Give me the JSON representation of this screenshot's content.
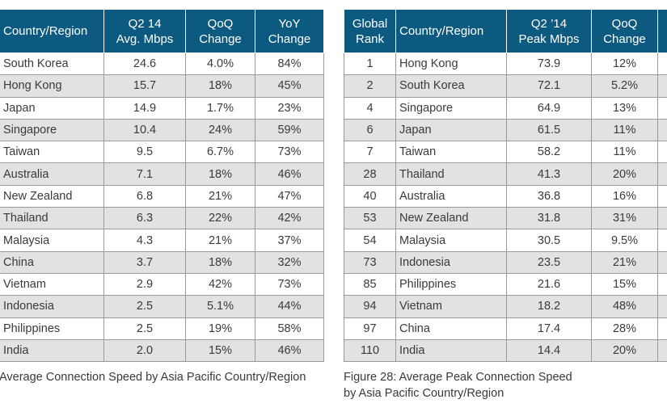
{
  "table1": {
    "headers": [
      "Country/Region",
      "Q2 14\nAvg. Mbps",
      "QoQ\nChange",
      "YoY\nChange"
    ],
    "rows": [
      [
        "South Korea",
        "24.6",
        "4.0%",
        "84%"
      ],
      [
        "Hong Kong",
        "15.7",
        "18%",
        "45%"
      ],
      [
        "Japan",
        "14.9",
        "1.7%",
        "23%"
      ],
      [
        "Singapore",
        "10.4",
        "24%",
        "59%"
      ],
      [
        "Taiwan",
        "9.5",
        "6.7%",
        "73%"
      ],
      [
        "Australia",
        "7.1",
        "18%",
        "46%"
      ],
      [
        "New Zealand",
        "6.8",
        "21%",
        "47%"
      ],
      [
        "Thailand",
        "6.3",
        "22%",
        "42%"
      ],
      [
        "Malaysia",
        "4.3",
        "21%",
        "37%"
      ],
      [
        "China",
        "3.7",
        "18%",
        "32%"
      ],
      [
        "Vietnam",
        "2.9",
        "42%",
        "73%"
      ],
      [
        "Indonesia",
        "2.5",
        "5.1%",
        "44%"
      ],
      [
        "Philippines",
        "2.5",
        "19%",
        "58%"
      ],
      [
        "India",
        "2.0",
        "15%",
        "46%"
      ]
    ],
    "caption": "Average Connection Speed by Asia Pacific Country/Region"
  },
  "table2": {
    "headers": [
      "Global\nRank",
      "Country/Region",
      "Q2 ’14\nPeak Mbps",
      "QoQ\nChange",
      ""
    ],
    "rows": [
      [
        "1",
        "Hong Kong",
        "73.9",
        "12%",
        ""
      ],
      [
        "2",
        "South Korea",
        "72.1",
        "5.2%",
        ""
      ],
      [
        "4",
        "Singapore",
        "64.9",
        "13%",
        ""
      ],
      [
        "6",
        "Japan",
        "61.5",
        "11%",
        ""
      ],
      [
        "7",
        "Taiwan",
        "58.2",
        "11%",
        ""
      ],
      [
        "28",
        "Thailand",
        "41.3",
        "20%",
        ""
      ],
      [
        "40",
        "Australia",
        "36.8",
        "16%",
        ""
      ],
      [
        "53",
        "New Zealand",
        "31.8",
        "31%",
        ""
      ],
      [
        "54",
        "Malaysia",
        "30.5",
        "9.5%",
        ""
      ],
      [
        "73",
        "Indonesia",
        "23.5",
        "21%",
        ""
      ],
      [
        "85",
        "Philippines",
        "21.6",
        "15%",
        ""
      ],
      [
        "94",
        "Vietnam",
        "18.2",
        "48%",
        ""
      ],
      [
        "97",
        "China",
        "17.4",
        "28%",
        ""
      ],
      [
        "110",
        "India",
        "14.4",
        "20%",
        ""
      ]
    ],
    "caption_line1": "Figure 28: Average Peak Connection Speed",
    "caption_line2": "by Asia Pacific Country/Region"
  },
  "colors": {
    "header_bg": "#0d5a80",
    "stripe_bg": "#e2e2e2",
    "text": "#3a3a3a"
  }
}
